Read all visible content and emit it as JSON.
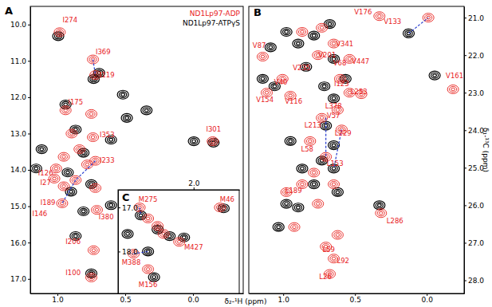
{
  "chart_data": [
    {
      "type": "scatter",
      "title": "A",
      "marker": "contour",
      "legend": "upper right",
      "xlabel": "δ₂-¹H (ppm)",
      "xlim": [
        1.2,
        -0.37
      ],
      "ylim": [
        9.5,
        17.4
      ],
      "xticks": [
        {
          "value": 1,
          "label": "1.0"
        },
        0.5,
        {
          "value": 0,
          "label": "0.0"
        }
      ],
      "yticks": [
        {
          "value": 10,
          "label": "10.0"
        },
        {
          "value": 11,
          "label": "11.0"
        },
        {
          "value": 12,
          "label": "12.0"
        },
        {
          "value": 13,
          "label": "13.0"
        },
        {
          "value": 14,
          "label": "14.0"
        },
        {
          "value": 15,
          "label": "15.0"
        },
        {
          "value": 16,
          "label": "16.0"
        },
        {
          "value": 17,
          "label": "17.0"
        }
      ],
      "series": [
        {
          "name": "ND1Lp97-ADP",
          "color": "#e8201c",
          "x": [
            0.983,
            0.738,
            0.72,
            0.94,
            0.75,
            0.895,
            0.837,
            0.953,
            0.78,
            0.866,
            0.72,
            0.738,
            0.72,
            0.709,
            0.965,
            0.733,
            0.75,
            -0.145,
            0.953,
            1.01,
            1.023
          ],
          "values": [
            10.21,
            10.96,
            11.39,
            12.36,
            12.46,
            13.0,
            13.43,
            13.64,
            13.85,
            14.28,
            14.5,
            13.1,
            13.75,
            15.1,
            14.92,
            16.21,
            16.96,
            13.21,
            14.45,
            13.96,
            14.24
          ]
        },
        {
          "name": "ND1Lp97-ATPγS",
          "color": "#000000",
          "x": [
            0.994,
            0.733,
            0.692,
            0.517,
            1.116,
            1.157,
            0.488,
            0.343,
            0.605,
            0.866,
            0.808,
            0.924,
            0.75,
            0.605,
            0.808,
            0.866,
            0.75,
            -0.151,
            -0.006,
            0.94,
            0.9
          ],
          "values": [
            10.32,
            11.5,
            11.33,
            11.93,
            13.43,
            13.96,
            12.57,
            12.36,
            13.17,
            12.89,
            13.53,
            14.07,
            14.39,
            14.97,
            15.14,
            15.82,
            16.85,
            13.25,
            13.21,
            12.2,
            14.6
          ]
        }
      ],
      "links": [
        {
          "x": [
            0.738,
            0.72
          ],
          "y": [
            10.96,
            11.39
          ]
        },
        {
          "x": [
            0.72,
            0.866
          ],
          "y": [
            13.75,
            14.28
          ]
        },
        {
          "x": [
            0.866,
            0.965
          ],
          "y": [
            14.28,
            14.92
          ]
        }
      ],
      "annotations": [
        {
          "text": "I274",
          "x": 0.907,
          "y": 9.94
        },
        {
          "text": "I369",
          "x": 0.663,
          "y": 10.81
        },
        {
          "text": "I119",
          "x": 0.634,
          "y": 11.46
        },
        {
          "text": "I175",
          "x": 0.866,
          "y": 12.2
        },
        {
          "text": "I353",
          "x": 0.634,
          "y": 13.1
        },
        {
          "text": "I233",
          "x": 0.634,
          "y": 13.81
        },
        {
          "text": "I126",
          "x": 1.087,
          "y": 14.15
        },
        {
          "text": "I27",
          "x": 1.087,
          "y": 14.41
        },
        {
          "text": "I189",
          "x": 1.07,
          "y": 14.97
        },
        {
          "text": "I146",
          "x": 1.13,
          "y": 15.27
        },
        {
          "text": "I380",
          "x": 0.64,
          "y": 15.35
        },
        {
          "text": "I206",
          "x": 0.884,
          "y": 16.04
        },
        {
          "text": "I100",
          "x": 0.884,
          "y": 16.9
        },
        {
          "text": "I301",
          "x": -0.151,
          "y": 12.95
        }
      ]
    },
    {
      "type": "scatter",
      "title": "B",
      "marker": "contour",
      "ylabel": "δ₁-¹³C (ppm)",
      "xlim": [
        1.24,
        -0.26
      ],
      "ylim": [
        20.7,
        28.35
      ],
      "xticks": [
        {
          "value": 1,
          "label": "1.0"
        },
        0.5,
        {
          "value": 0,
          "label": "0.0"
        }
      ],
      "yticks": [
        {
          "value": 21,
          "label": "21.0"
        },
        {
          "value": 22,
          "label": "22.0"
        },
        {
          "value": 23,
          "label": "23.0"
        },
        {
          "value": 24,
          "label": "24.0"
        },
        {
          "value": 25,
          "label": "25.0"
        },
        {
          "value": 26,
          "label": "26.0"
        },
        {
          "value": 27,
          "label": "27.0"
        },
        {
          "value": 28,
          "label": "28.0"
        }
      ],
      "series": [
        {
          "color": "#e8201c",
          "x": [
            -0.011,
            0.33,
            -0.183,
            1.143,
            1.115,
            0.95,
            1.005,
            0.868,
            0.731,
            0.648,
            0.758,
            0.538,
            0.604,
            0.538,
            0.456,
            0.621,
            0.731,
            0.593,
            0.813,
            0.703,
            0.786,
            0.868,
            0.648,
            0.978,
            0.758,
            0.319,
            0.621,
            0.703,
            0.648,
            0.676,
            0.923
          ],
          "values": [
            21.0,
            20.96,
            22.91,
            22.04,
            23.0,
            23.08,
            22.63,
            21.38,
            21.27,
            21.69,
            22.0,
            22.1,
            22.63,
            23.0,
            23.04,
            23.46,
            23.67,
            23.98,
            24.29,
            24.71,
            25.13,
            25.44,
            25.44,
            25.65,
            25.96,
            26.21,
            26.79,
            27.1,
            27.42,
            27.83,
            26.58
          ]
        },
        {
          "color": "#000000",
          "x": [
            0.126,
            -0.055,
            1.088,
            0.978,
            0.896,
            0.786,
            0.676,
            0.648,
            0.841,
            1.143,
            1.06,
            0.566,
            0.648,
            0.703,
            0.648,
            0.731,
            0.95,
            0.868,
            0.648,
            0.786,
            0.978,
            0.896,
            0.621,
            0.33,
            0.714,
            1.033
          ],
          "values": [
            21.42,
            22.54,
            21.79,
            21.38,
            21.69,
            21.48,
            21.17,
            22.1,
            22.31,
            22.63,
            22.83,
            22.63,
            23.15,
            23.88,
            24.4,
            24.81,
            24.29,
            25.02,
            25.02,
            25.44,
            25.96,
            26.06,
            25.65,
            26.0,
            22.83,
            26.58
          ]
        }
      ],
      "links": [
        {
          "x": [
            0.126,
            -0.011
          ],
          "y": [
            21.42,
            21.0
          ]
        },
        {
          "x": [
            0.703,
            0.703
          ],
          "y": [
            23.67,
            24.71
          ]
        },
        {
          "x": [
            0.593,
            0.648
          ],
          "y": [
            23.98,
            25.02
          ]
        }
      ],
      "annotations": [
        {
          "text": "V133",
          "x": 0.239,
          "y": 21.17
        },
        {
          "text": "V176",
          "x": 0.444,
          "y": 20.91
        },
        {
          "text": "V87",
          "x": 1.167,
          "y": 21.8
        },
        {
          "text": "V341",
          "x": 0.572,
          "y": 21.76
        },
        {
          "text": "V201",
          "x": 0.694,
          "y": 22.06
        },
        {
          "text": "V68",
          "x": 0.606,
          "y": 22.27
        },
        {
          "text": "V447",
          "x": 0.461,
          "y": 22.23
        },
        {
          "text": "V235",
          "x": 0.872,
          "y": 22.4
        },
        {
          "text": "V161",
          "x": -0.194,
          "y": 22.61
        },
        {
          "text": "V154",
          "x": 1.128,
          "y": 23.25
        },
        {
          "text": "V116",
          "x": 0.928,
          "y": 23.29
        },
        {
          "text": "V40",
          "x": 1.017,
          "y": 22.78
        },
        {
          "text": "I123",
          "x": 0.594,
          "y": 22.82
        },
        {
          "text": "L253",
          "x": 0.472,
          "y": 23.04
        },
        {
          "text": "L378",
          "x": 0.65,
          "y": 23.42
        },
        {
          "text": "V57",
          "x": 0.65,
          "y": 23.68
        },
        {
          "text": "L213",
          "x": 0.794,
          "y": 23.93
        },
        {
          "text": "L229",
          "x": 0.583,
          "y": 24.14
        },
        {
          "text": "L58",
          "x": 0.833,
          "y": 24.57
        },
        {
          "text": "L153",
          "x": 0.639,
          "y": 24.95
        },
        {
          "text": "L189",
          "x": 0.928,
          "y": 25.67
        },
        {
          "text": "L286",
          "x": 0.222,
          "y": 26.48
        },
        {
          "text": "L59",
          "x": 0.683,
          "y": 27.25
        },
        {
          "text": "L92",
          "x": 0.583,
          "y": 27.54
        },
        {
          "text": "L26",
          "x": 0.706,
          "y": 27.97
        }
      ]
    },
    {
      "type": "scatter",
      "title": "C",
      "marker": "contour",
      "xlim": [
        2.63,
        1.62
      ],
      "ylim": [
        16.6,
        18.95
      ],
      "xticks": [
        {
          "value": 2,
          "label": "2.0"
        }
      ],
      "yticks": [
        {
          "value": 17,
          "label": "17.0"
        },
        {
          "value": 18,
          "label": "18.0"
        }
      ],
      "series": [
        {
          "color": "#e8201c",
          "x": [
            2.45,
            2.38,
            2.3,
            2.5,
            2.38,
            2.12,
            2.25,
            1.78
          ],
          "values": [
            17.0,
            17.25,
            17.42,
            18.05,
            18.4,
            17.78,
            17.6,
            17.0
          ]
        },
        {
          "color": "#000000",
          "x": [
            2.44,
            2.3,
            2.38,
            2.33,
            2.08,
            2.2,
            1.75,
            2.55
          ],
          "values": [
            17.18,
            17.5,
            18.0,
            18.58,
            17.68,
            17.65,
            17.02,
            17.6
          ]
        }
      ],
      "links": [
        {
          "x": [
            2.5,
            2.38
          ],
          "y": [
            18.05,
            18.0
          ]
        },
        {
          "x": [
            2.45,
            2.44
          ],
          "y": [
            17.0,
            17.18
          ]
        }
      ],
      "annotations": [
        {
          "text": "M275",
          "x": 2.38,
          "y": 16.88
        },
        {
          "text": "M46",
          "x": 1.72,
          "y": 16.88
        },
        {
          "text": "M388",
          "x": 2.52,
          "y": 18.3
        },
        {
          "text": "M427",
          "x": 2.0,
          "y": 17.95
        },
        {
          "text": "M156",
          "x": 2.38,
          "y": 18.8
        }
      ]
    }
  ]
}
